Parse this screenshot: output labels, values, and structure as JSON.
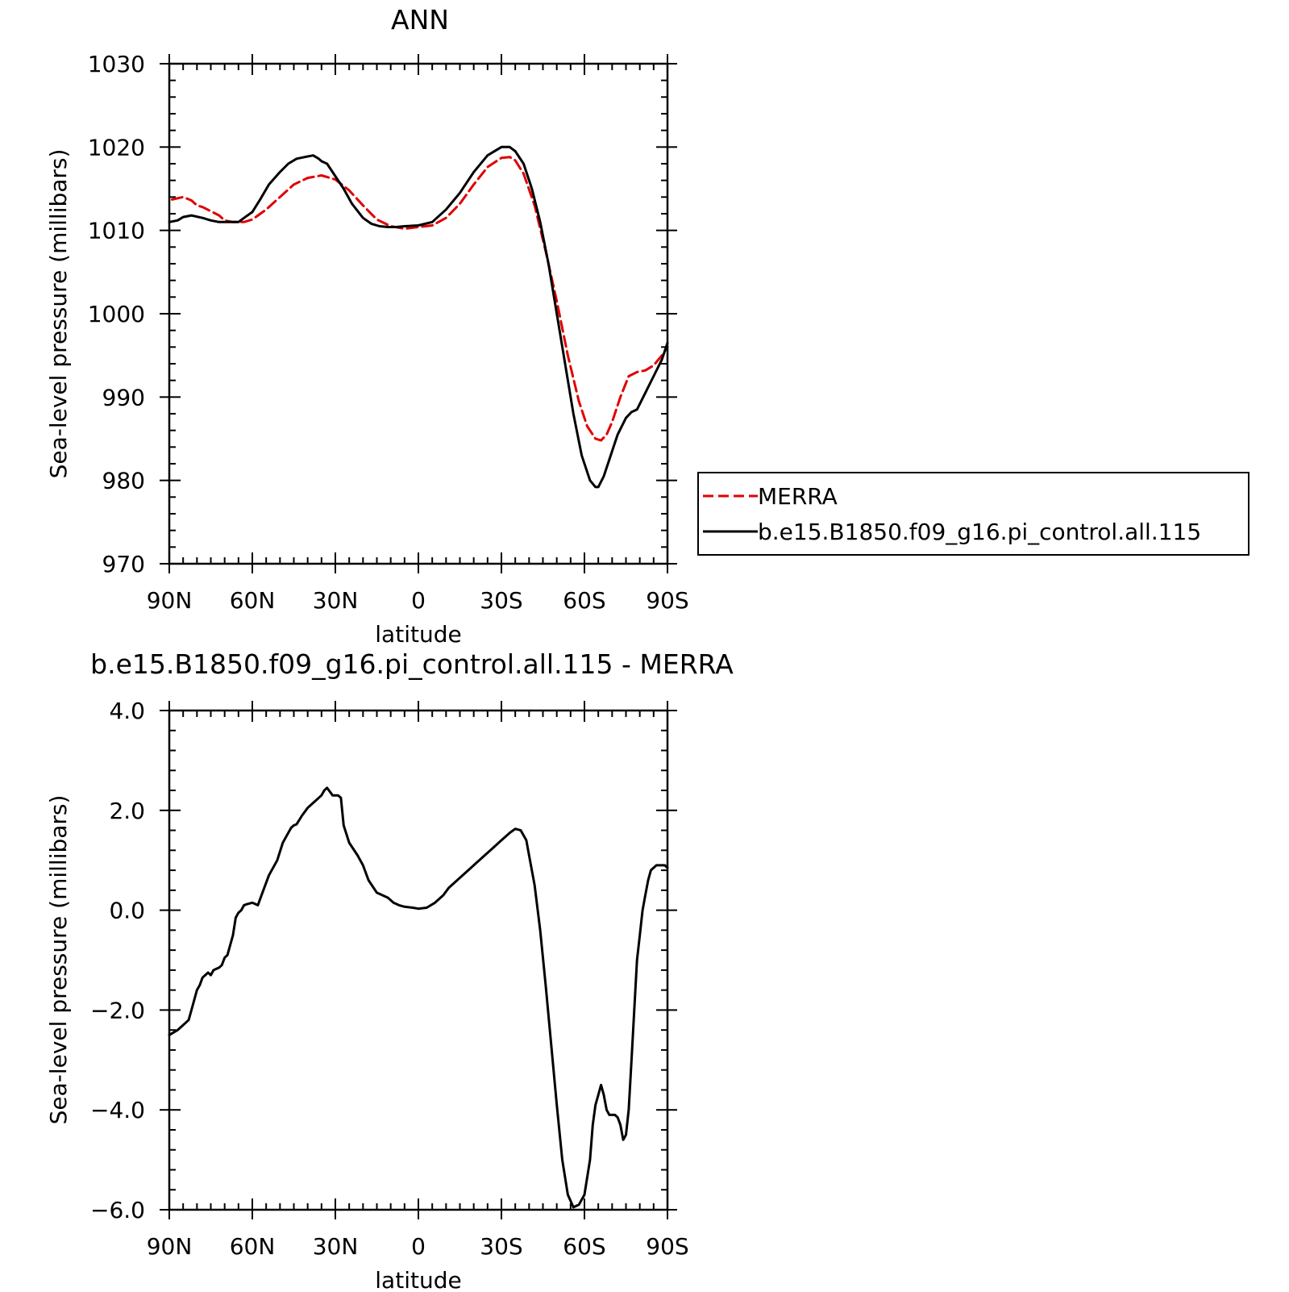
{
  "chart_data": [
    {
      "type": "line",
      "title": "ANN",
      "xlabel": "latitude",
      "ylabel": "Sea-level pressure (millibars)",
      "xlim": [
        90,
        -90
      ],
      "ylim": [
        970,
        1030
      ],
      "x_ticks": [
        {
          "value": 90,
          "label": "90N"
        },
        {
          "value": 60,
          "label": "60N"
        },
        {
          "value": 30,
          "label": "30N"
        },
        {
          "value": 0,
          "label": "0"
        },
        {
          "value": -30,
          "label": "30S"
        },
        {
          "value": -60,
          "label": "60S"
        },
        {
          "value": -90,
          "label": "90S"
        }
      ],
      "y_ticks": [
        {
          "value": 970,
          "label": "970"
        },
        {
          "value": 980,
          "label": "980"
        },
        {
          "value": 990,
          "label": "990"
        },
        {
          "value": 1000,
          "label": "1000"
        },
        {
          "value": 1010,
          "label": "1010"
        },
        {
          "value": 1020,
          "label": "1020"
        },
        {
          "value": 1030,
          "label": "1030"
        }
      ],
      "legend_position": "right",
      "series": [
        {
          "name": "MERRA",
          "color": "#e00000",
          "dash": "dashed",
          "x": [
            89,
            85,
            82,
            80,
            78,
            75,
            72,
            70,
            67,
            63,
            60,
            55,
            50,
            45,
            40,
            35,
            30,
            25,
            20,
            15,
            10,
            5,
            0,
            -5,
            -10,
            -15,
            -20,
            -25,
            -30,
            -33,
            -35,
            -38,
            -42,
            -46,
            -50,
            -54,
            -58,
            -61,
            -64,
            -66,
            -68,
            -70,
            -73,
            -76,
            -79,
            -82,
            -85,
            -88,
            -90
          ],
          "y": [
            1013.7,
            1014.0,
            1013.6,
            1013.0,
            1012.8,
            1012.3,
            1011.8,
            1011.2,
            1011.0,
            1011.0,
            1011.3,
            1012.5,
            1014.0,
            1015.5,
            1016.3,
            1016.6,
            1016.1,
            1014.8,
            1013.0,
            1011.3,
            1010.5,
            1010.2,
            1010.4,
            1010.6,
            1011.5,
            1013.2,
            1015.5,
            1017.6,
            1018.7,
            1018.8,
            1018.4,
            1016.8,
            1013.0,
            1007.5,
            1001.5,
            995.0,
            989.5,
            986.5,
            985.0,
            984.8,
            985.5,
            987.0,
            990.0,
            992.5,
            993.0,
            993.2,
            993.8,
            995.0,
            996.0
          ]
        },
        {
          "name": "b.e15.B1850.f09_g16.pi_control.all.115",
          "color": "#000000",
          "dash": "solid",
          "x": [
            90,
            87,
            85,
            82,
            78,
            75,
            72,
            69,
            65,
            63,
            60,
            57,
            54,
            50,
            47,
            44,
            41,
            38,
            36,
            35,
            33,
            30,
            27,
            24,
            20,
            17,
            14,
            11,
            8,
            5,
            0,
            -5,
            -10,
            -15,
            -20,
            -25,
            -30,
            -33,
            -35,
            -38,
            -41,
            -44,
            -47,
            -50,
            -53,
            -56,
            -59,
            -62,
            -64,
            -65,
            -67,
            -70,
            -72,
            -75,
            -77,
            -79,
            -82,
            -85,
            -88,
            -90
          ],
          "y": [
            1011.0,
            1011.2,
            1011.6,
            1011.8,
            1011.5,
            1011.2,
            1011.0,
            1011.0,
            1011.0,
            1011.5,
            1012.2,
            1013.8,
            1015.5,
            1017.0,
            1018.0,
            1018.6,
            1018.8,
            1019.0,
            1018.6,
            1018.3,
            1018.0,
            1016.5,
            1015.0,
            1013.2,
            1011.5,
            1010.8,
            1010.5,
            1010.4,
            1010.4,
            1010.5,
            1010.6,
            1011.0,
            1012.5,
            1014.5,
            1017.0,
            1019.0,
            1020.0,
            1020.0,
            1019.5,
            1018.0,
            1015.0,
            1011.0,
            1006.0,
            1000.0,
            994.0,
            988.0,
            983.0,
            980.0,
            979.2,
            979.2,
            980.5,
            983.5,
            985.5,
            987.5,
            988.2,
            988.5,
            990.5,
            992.5,
            994.5,
            996.5
          ]
        }
      ]
    },
    {
      "type": "line",
      "title": "b.e15.B1850.f09_g16.pi_control.all.115 - MERRA",
      "xlabel": "latitude",
      "ylabel": "Sea-level pressure (millibars)",
      "xlim": [
        90,
        -90
      ],
      "ylim": [
        -6.0,
        4.0
      ],
      "x_ticks": [
        {
          "value": 90,
          "label": "90N"
        },
        {
          "value": 60,
          "label": "60N"
        },
        {
          "value": 30,
          "label": "30N"
        },
        {
          "value": 0,
          "label": "0"
        },
        {
          "value": -30,
          "label": "30S"
        },
        {
          "value": -60,
          "label": "60S"
        },
        {
          "value": -90,
          "label": "90S"
        }
      ],
      "y_ticks": [
        {
          "value": -6.0,
          "label": "−6.0"
        },
        {
          "value": -4.0,
          "label": "−4.0"
        },
        {
          "value": -2.0,
          "label": "−2.0"
        },
        {
          "value": 0.0,
          "label": "0.0"
        },
        {
          "value": 2.0,
          "label": "2.0"
        },
        {
          "value": 4.0,
          "label": "4.0"
        }
      ],
      "series": [
        {
          "color": "#000000",
          "dash": "solid",
          "x": [
            90,
            87,
            85,
            83,
            82,
            81,
            80,
            79,
            78,
            77,
            76,
            75,
            74,
            72,
            71,
            70,
            69,
            67,
            66,
            65,
            64,
            63,
            62,
            60,
            58,
            56,
            54,
            51,
            49,
            47,
            46,
            45,
            44,
            42,
            40,
            38,
            37,
            36,
            35,
            34,
            33,
            31,
            29,
            28,
            27,
            25,
            22,
            20,
            18,
            15,
            13,
            11,
            9,
            7,
            5,
            2,
            0,
            -3,
            -6,
            -9,
            -11,
            -13,
            -15,
            -18,
            -21,
            -24,
            -27,
            -30,
            -33,
            -35,
            -37,
            -39,
            -40,
            -42,
            -44,
            -46,
            -48,
            -50,
            -52,
            -54,
            -56,
            -58,
            -60,
            -62,
            -63,
            -64,
            -65,
            -66,
            -67,
            -68,
            -69,
            -71,
            -72,
            -73,
            -74,
            -75,
            -76,
            -77,
            -78,
            -79,
            -80,
            -81,
            -82,
            -83,
            -84,
            -85,
            -86,
            -88,
            -89,
            -90
          ],
          "y": [
            -2.5,
            -2.4,
            -2.3,
            -2.2,
            -2.0,
            -1.8,
            -1.6,
            -1.5,
            -1.35,
            -1.3,
            -1.25,
            -1.3,
            -1.2,
            -1.15,
            -1.1,
            -0.95,
            -0.9,
            -0.5,
            -0.15,
            -0.05,
            0.0,
            0.1,
            0.12,
            0.15,
            0.1,
            0.4,
            0.7,
            1.0,
            1.35,
            1.55,
            1.65,
            1.7,
            1.72,
            1.9,
            2.05,
            2.15,
            2.2,
            2.25,
            2.3,
            2.4,
            2.45,
            2.3,
            2.3,
            2.25,
            1.7,
            1.35,
            1.1,
            0.9,
            0.6,
            0.35,
            0.3,
            0.25,
            0.15,
            0.1,
            0.07,
            0.05,
            0.03,
            0.05,
            0.15,
            0.3,
            0.45,
            0.55,
            0.65,
            0.8,
            0.95,
            1.1,
            1.25,
            1.4,
            1.55,
            1.63,
            1.6,
            1.4,
            1.1,
            0.5,
            -0.4,
            -1.5,
            -2.7,
            -3.9,
            -5.0,
            -5.7,
            -5.95,
            -5.9,
            -5.7,
            -5.0,
            -4.3,
            -3.9,
            -3.7,
            -3.5,
            -3.7,
            -4.0,
            -4.1,
            -4.1,
            -4.15,
            -4.3,
            -4.6,
            -4.5,
            -4.0,
            -3.0,
            -2.0,
            -1.0,
            -0.5,
            0.0,
            0.3,
            0.6,
            0.8,
            0.85,
            0.9,
            0.9,
            0.9,
            0.85
          ]
        }
      ]
    }
  ]
}
